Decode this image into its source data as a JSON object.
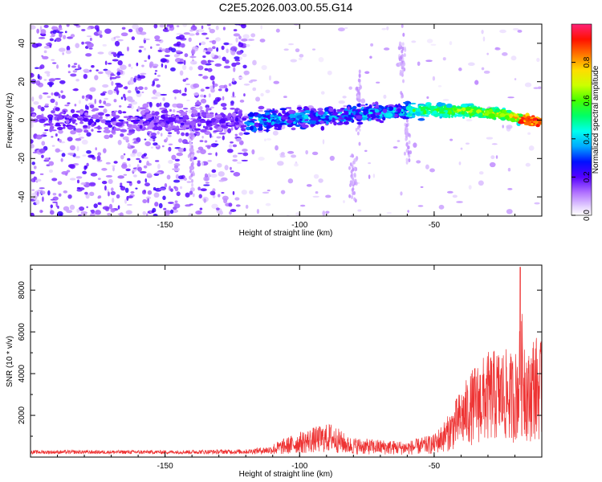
{
  "title": "C2E5.2026.003.00.55.G14",
  "chart_data": [
    {
      "type": "heatmap",
      "xlabel": "Height of straight line (km)",
      "ylabel": "Frequency (Hz)",
      "xlim": [
        -200,
        -10
      ],
      "ylim": [
        -50,
        50
      ],
      "xticks": [
        -150,
        -100,
        -50
      ],
      "yticks": [
        -40,
        -20,
        0,
        20,
        40
      ],
      "colorbar": {
        "label": "Normalized spectral amplitude",
        "range": [
          0,
          1
        ],
        "ticks": [
          0.0,
          0.2,
          0.4,
          0.6,
          0.8
        ]
      },
      "ridge_centerline": [
        {
          "x": -200,
          "y": 0
        },
        {
          "x": -150,
          "y": 0
        },
        {
          "x": -120,
          "y": -1
        },
        {
          "x": -100,
          "y": 1
        },
        {
          "x": -80,
          "y": 3
        },
        {
          "x": -60,
          "y": 5
        },
        {
          "x": -40,
          "y": 5
        },
        {
          "x": -25,
          "y": 3
        },
        {
          "x": -12,
          "y": -1
        }
      ]
    },
    {
      "type": "line",
      "xlabel": "Height of straight line (km)",
      "ylabel": "SNR (10 * v/v)",
      "xlim": [
        -200,
        -10
      ],
      "ylim": [
        0,
        9200
      ],
      "xticks": [
        -150,
        -100,
        -50
      ],
      "yticks": [
        2000,
        4000,
        6000,
        8000
      ],
      "color": "#ee3333",
      "envelope": [
        {
          "x": -200,
          "y": 350
        },
        {
          "x": -150,
          "y": 350
        },
        {
          "x": -120,
          "y": 400
        },
        {
          "x": -110,
          "y": 600
        },
        {
          "x": -100,
          "y": 1100
        },
        {
          "x": -95,
          "y": 1300
        },
        {
          "x": -88,
          "y": 1500
        },
        {
          "x": -82,
          "y": 900
        },
        {
          "x": -75,
          "y": 800
        },
        {
          "x": -60,
          "y": 700
        },
        {
          "x": -50,
          "y": 1000
        },
        {
          "x": -45,
          "y": 1800
        },
        {
          "x": -40,
          "y": 3000
        },
        {
          "x": -35,
          "y": 4000
        },
        {
          "x": -30,
          "y": 4600
        },
        {
          "x": -25,
          "y": 4800
        },
        {
          "x": -20,
          "y": 4500
        },
        {
          "x": -17,
          "y": 6500
        },
        {
          "x": -15,
          "y": 4500
        },
        {
          "x": -13,
          "y": 5500
        },
        {
          "x": -10,
          "y": 5000
        }
      ],
      "peak": {
        "x": -18,
        "y": 9100
      }
    }
  ]
}
